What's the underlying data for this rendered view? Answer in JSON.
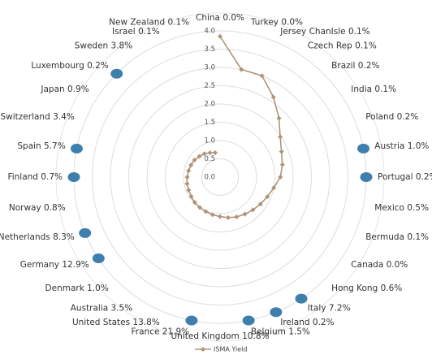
{
  "chart_data": {
    "type": "radar",
    "categories": [
      "China 0.0%",
      "Turkey 0.0%",
      "Jersey ChanIsle 0.1%",
      "Czech Rep 0.1%",
      "Brazil 0.2%",
      "India 0.1%",
      "Poland 0.2%",
      "Austria 1.0%",
      "Portugal 0.2%",
      "Mexico 0.5%",
      "Bermuda 0.1%",
      "Canada 0.0%",
      "Hong Kong 0.6%",
      "Italy 7.2%",
      "Ireland 0.2%",
      "Belgium 1.5%",
      "United Kingdom 10.8%",
      "France 21.9%",
      "United States 13.8%",
      "Australia 3.5%",
      "Denmark 1.0%",
      "Germany 12.9%",
      "Netherlands 8.3%",
      "Norway 0.8%",
      "Finland 0.7%",
      "Spain 5.7%",
      "Switzerland 3.4%",
      "Japan 0.9%",
      "Luxembourg 0.2%",
      "Sweden 3.8%",
      "Israel 0.1%",
      "New Zealand 0.1%"
    ],
    "series": [
      {
        "name": "ISMA Yield",
        "color": "#b09478",
        "line": true,
        "marker": "diamond",
        "values": [
          3.85,
          3.0,
          3.0,
          2.63,
          2.28,
          1.98,
          1.82,
          1.74,
          1.65,
          1.5,
          1.4,
          1.33,
          1.27,
          1.22,
          1.18,
          1.13,
          1.08,
          1.05,
          1.02,
          1.0,
          0.98,
          0.95,
          0.93,
          0.92,
          0.9,
          0.88,
          0.86,
          0.84,
          0.8,
          0.77,
          0.72,
          0.68
        ]
      },
      {
        "color": "#3f7fad",
        "line": false,
        "marker": "ellipse",
        "values": [
          null,
          null,
          null,
          null,
          null,
          null,
          null,
          4.0,
          4.0,
          null,
          null,
          null,
          null,
          4.0,
          4.0,
          4.0,
          null,
          4.0,
          null,
          null,
          null,
          4.0,
          4.0,
          null,
          4.0,
          4.0,
          null,
          null,
          4.0,
          null,
          null,
          null
        ]
      }
    ],
    "ylim": [
      0,
      4
    ],
    "yticks": [
      {
        "value": 0,
        "label": "0.0"
      },
      0.5,
      {
        "value": 1,
        "label": "1.0"
      },
      1.5,
      {
        "value": 2,
        "label": "2.0"
      },
      2.5,
      {
        "value": 3,
        "label": "3.0"
      },
      3.5,
      {
        "value": 4,
        "label": "4.0"
      }
    ],
    "grid": true,
    "legend": "bottom"
  }
}
